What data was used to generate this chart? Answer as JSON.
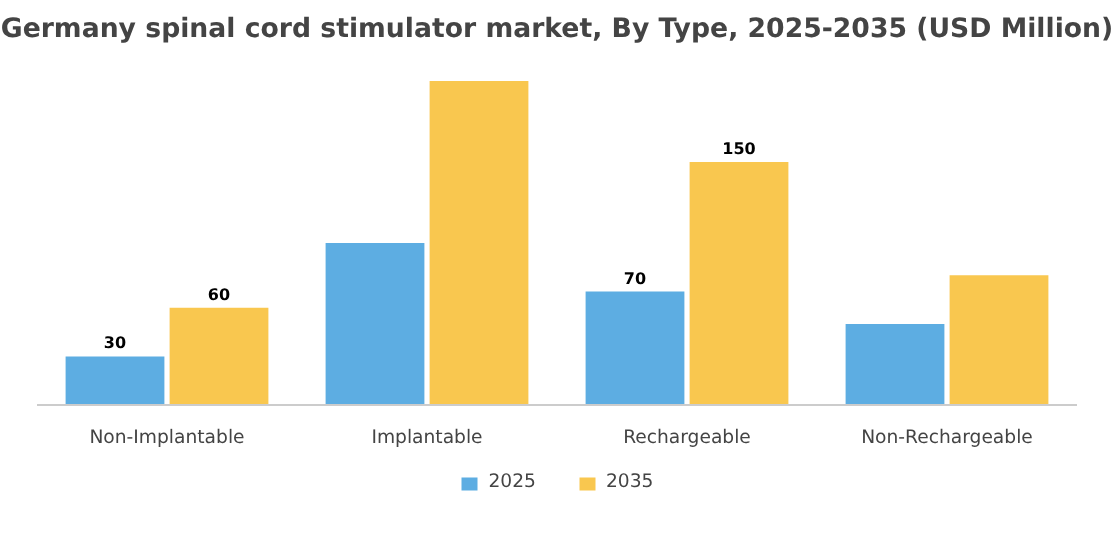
{
  "chart_data": {
    "type": "bar",
    "title": "Germany spinal cord stimulator market, By Type, 2025-2035 (USD Million)",
    "categories": [
      "Non-Implantable",
      "Implantable",
      "Rechargeable",
      "Non-Rechargeable"
    ],
    "series": [
      {
        "name": "2025",
        "color": "#5dade2",
        "values": [
          30,
          100,
          70,
          50
        ],
        "value_labels": [
          "30",
          null,
          "70",
          null
        ]
      },
      {
        "name": "2035",
        "color": "#f9c74f",
        "values": [
          60,
          200,
          150,
          80
        ],
        "value_labels": [
          "60",
          null,
          "150",
          null
        ]
      }
    ],
    "legend": "bottom",
    "tick_labels": "x"
  }
}
